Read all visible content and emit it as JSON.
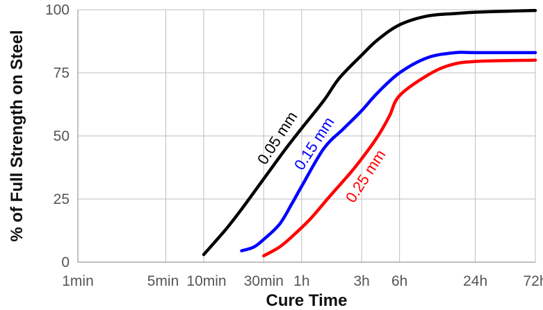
{
  "chart_data": {
    "type": "line",
    "title": "",
    "xlabel": "Cure Time",
    "ylabel": "% of Full Strength on Steel",
    "x_scale": "log",
    "x_unit": "minutes",
    "xlim": [
      1,
      4320
    ],
    "ylim": [
      0,
      100
    ],
    "x_ticks": [
      {
        "label": "1min",
        "value": 1
      },
      {
        "label": "5min",
        "value": 5
      },
      {
        "label": "10min",
        "value": 10
      },
      {
        "label": "30min",
        "value": 30
      },
      {
        "label": "1h",
        "value": 60
      },
      {
        "label": "3h",
        "value": 180
      },
      {
        "label": "6h",
        "value": 360
      },
      {
        "label": "24h",
        "value": 1440
      },
      {
        "label": "72h",
        "value": 4320
      }
    ],
    "y_ticks": [
      {
        "label": "0",
        "value": 0
      },
      {
        "label": "25",
        "value": 25
      },
      {
        "label": "50",
        "value": 50
      },
      {
        "label": "75",
        "value": 75
      },
      {
        "label": "100",
        "value": 100
      }
    ],
    "grid": true,
    "series": [
      {
        "name": "0.05 mm",
        "color": "#000000",
        "points": [
          [
            10,
            3
          ],
          [
            15,
            13
          ],
          [
            20,
            21
          ],
          [
            30,
            33
          ],
          [
            45,
            45
          ],
          [
            60,
            53
          ],
          [
            90,
            64
          ],
          [
            120,
            73
          ],
          [
            180,
            82
          ],
          [
            240,
            88
          ],
          [
            360,
            94
          ],
          [
            600,
            97.5
          ],
          [
            1000,
            98.5
          ],
          [
            1440,
            99
          ],
          [
            2500,
            99.4
          ],
          [
            4320,
            99.7
          ]
        ]
      },
      {
        "name": "0.15 mm",
        "color": "#0000FF",
        "points": [
          [
            20,
            4.5
          ],
          [
            25,
            6
          ],
          [
            30,
            9
          ],
          [
            40,
            15
          ],
          [
            50,
            23
          ],
          [
            60,
            30
          ],
          [
            90,
            45
          ],
          [
            130,
            53
          ],
          [
            180,
            60
          ],
          [
            240,
            67
          ],
          [
            360,
            75
          ],
          [
            600,
            81
          ],
          [
            1000,
            83
          ],
          [
            1440,
            83
          ],
          [
            4320,
            83
          ]
        ]
      },
      {
        "name": "0.25 mm",
        "color": "#FF0000",
        "points": [
          [
            30,
            2.5
          ],
          [
            40,
            6
          ],
          [
            50,
            10
          ],
          [
            70,
            17
          ],
          [
            100,
            26
          ],
          [
            150,
            36
          ],
          [
            200,
            44
          ],
          [
            250,
            51
          ],
          [
            300,
            58
          ],
          [
            360,
            66
          ],
          [
            600,
            74
          ],
          [
            900,
            78
          ],
          [
            1440,
            79.5
          ],
          [
            4320,
            80
          ]
        ]
      }
    ]
  }
}
